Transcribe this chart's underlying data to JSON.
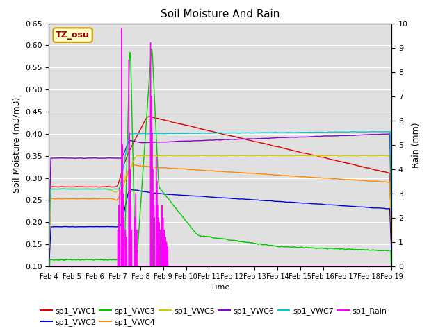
{
  "title": "Soil Moisture And Rain",
  "xlabel": "Time",
  "ylabel_left": "Soil Moisture (m3/m3)",
  "ylabel_right": "Rain (mm)",
  "ylim_left": [
    0.1,
    0.65
  ],
  "ylim_right": [
    0.0,
    10.0
  ],
  "yticks_left": [
    0.1,
    0.15,
    0.2,
    0.25,
    0.3,
    0.35,
    0.4,
    0.45,
    0.5,
    0.55,
    0.6,
    0.65
  ],
  "yticks_right": [
    0.0,
    1.0,
    2.0,
    3.0,
    4.0,
    5.0,
    6.0,
    7.0,
    8.0,
    9.0,
    10.0
  ],
  "station_label": "TZ_osu",
  "background_color": "#e0e0e0",
  "grid_color": "#ffffff",
  "colors": {
    "sp1_VWC1": "#dd0000",
    "sp1_VWC2": "#0000dd",
    "sp1_VWC3": "#00cc00",
    "sp1_VWC4": "#ff8800",
    "sp1_VWC5": "#cccc00",
    "sp1_VWC6": "#8800cc",
    "sp1_VWC7": "#00cccc",
    "sp1_Rain": "#ff00ff"
  }
}
